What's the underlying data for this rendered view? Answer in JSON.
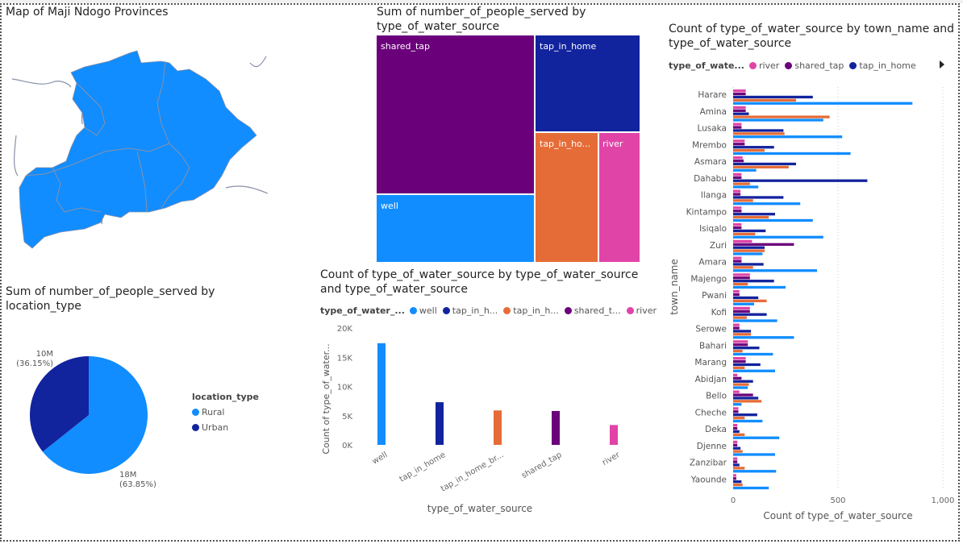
{
  "colors": {
    "well": "#118DFF",
    "tap_in_home": "#12239E",
    "tap_in_home_broken": "#E66C37",
    "shared_tap": "#6B007B",
    "river": "#E044A7",
    "map_fill": "#118DFF",
    "map_border": "#8a90a8"
  },
  "map": {
    "title": "Map of Maji Ndogo Provinces"
  },
  "treemap": {
    "title": "Sum of number_of_people_served by type_of_water_source",
    "chart_data": {
      "type": "treemap",
      "title": "Sum of number_of_people_served by type_of_water_source",
      "tiles": [
        {
          "label": "shared_tap",
          "color_key": "shared_tap"
        },
        {
          "label": "tap_in_home",
          "color_key": "tap_in_home"
        },
        {
          "label": "well",
          "color_key": "well"
        },
        {
          "label": "tap_in_ho...",
          "color_key": "tap_in_home_broken"
        },
        {
          "label": "river",
          "color_key": "river"
        }
      ]
    }
  },
  "pie": {
    "title": "Sum of number_of_people_served by location_type",
    "legend_title": "location_type",
    "chart_data": {
      "type": "pie",
      "title": "Sum of number_of_people_served by location_type",
      "slices": [
        {
          "name": "Rural",
          "value": 18,
          "label": "18M",
          "pct": "(63.85%)",
          "color": "#118DFF"
        },
        {
          "name": "Urban",
          "value": 10,
          "label": "10M",
          "pct": "(36.15%)",
          "color": "#12239E"
        }
      ]
    }
  },
  "column": {
    "title": "Count of type_of_water_source by type_of_water_source and type_of_water_source",
    "legend_title": "type_of_water_...",
    "legend": [
      {
        "label": "well",
        "color": "#118DFF"
      },
      {
        "label": "tap_in_h...",
        "color": "#12239E"
      },
      {
        "label": "tap_in_h...",
        "color": "#E66C37"
      },
      {
        "label": "shared_t...",
        "color": "#6B007B"
      },
      {
        "label": "river",
        "color": "#E044A7"
      }
    ],
    "chart_data": {
      "type": "bar",
      "title": "Count of type_of_water_source by type_of_water_source and type_of_water_source",
      "xlabel": "type_of_water_source",
      "ylabel": "Count of type_of_water...",
      "ylim": [
        0,
        20000
      ],
      "yticks": [
        {
          "v": 0,
          "label": "0K"
        },
        {
          "v": 5000,
          "label": "5K"
        },
        {
          "v": 10000,
          "label": "10K"
        },
        {
          "v": 15000,
          "label": "15K"
        },
        {
          "v": 20000,
          "label": "20K"
        }
      ],
      "categories": [
        "well",
        "tap_in_home",
        "tap_in_home_br...",
        "shared_tap",
        "river"
      ],
      "values": [
        17400,
        7300,
        5900,
        5800,
        3400
      ],
      "colors": [
        "#118DFF",
        "#12239E",
        "#E66C37",
        "#6B007B",
        "#E044A7"
      ]
    }
  },
  "hbar": {
    "title": "Count of type_of_water_source by town_name and type_of_water_source",
    "legend_title": "type_of_wate...",
    "legend": [
      {
        "label": "river",
        "color": "#E044A7"
      },
      {
        "label": "shared_tap",
        "color": "#6B007B"
      },
      {
        "label": "tap_in_home",
        "color": "#12239E"
      }
    ],
    "chart_data": {
      "type": "bar",
      "orientation": "horizontal",
      "title": "Count of type_of_water_source by town_name and type_of_water_source",
      "xlabel": "Count of type_of_water_source",
      "ylabel": "town_name",
      "xlim": [
        0,
        1000
      ],
      "xticks": [
        {
          "v": 0,
          "label": "0"
        },
        {
          "v": 500,
          "label": "500"
        },
        {
          "v": 1000,
          "label": "1,000"
        }
      ],
      "categories": [
        "Harare",
        "Amina",
        "Lusaka",
        "Mrembo",
        "Asmara",
        "Dahabu",
        "Ilanga",
        "Kintampo",
        "Isiqalo",
        "Zuri",
        "Amara",
        "Majengo",
        "Pwani",
        "Kofi",
        "Serowe",
        "Bahari",
        "Marang",
        "Abidjan",
        "Bello",
        "Cheche",
        "Deka",
        "Djenne",
        "Zanzibar",
        "Yaounde"
      ],
      "series": [
        {
          "name": "river",
          "color": "#E044A7",
          "values": [
            60,
            60,
            40,
            55,
            45,
            40,
            35,
            40,
            40,
            90,
            40,
            80,
            30,
            80,
            30,
            70,
            60,
            20,
            30,
            25,
            20,
            20,
            20,
            15
          ]
        },
        {
          "name": "shared_tap",
          "color": "#6B007B",
          "values": [
            60,
            60,
            40,
            55,
            50,
            40,
            35,
            40,
            40,
            290,
            40,
            80,
            30,
            80,
            30,
            70,
            60,
            40,
            95,
            25,
            20,
            20,
            20,
            15
          ]
        },
        {
          "name": "tap_in_home",
          "color": "#12239E",
          "values": [
            380,
            75,
            240,
            195,
            300,
            640,
            240,
            200,
            155,
            150,
            145,
            195,
            120,
            160,
            85,
            125,
            130,
            95,
            120,
            115,
            30,
            35,
            30,
            40
          ]
        },
        {
          "name": "tap_in_home_broken",
          "color": "#E66C37",
          "values": [
            300,
            460,
            245,
            150,
            265,
            80,
            95,
            170,
            105,
            150,
            95,
            70,
            160,
            65,
            85,
            45,
            55,
            75,
            135,
            55,
            55,
            45,
            55,
            45
          ]
        },
        {
          "name": "well",
          "color": "#118DFF",
          "values": [
            855,
            430,
            520,
            560,
            110,
            120,
            320,
            380,
            430,
            140,
            400,
            250,
            100,
            210,
            290,
            190,
            200,
            70,
            40,
            140,
            220,
            200,
            205,
            170
          ]
        }
      ]
    }
  }
}
